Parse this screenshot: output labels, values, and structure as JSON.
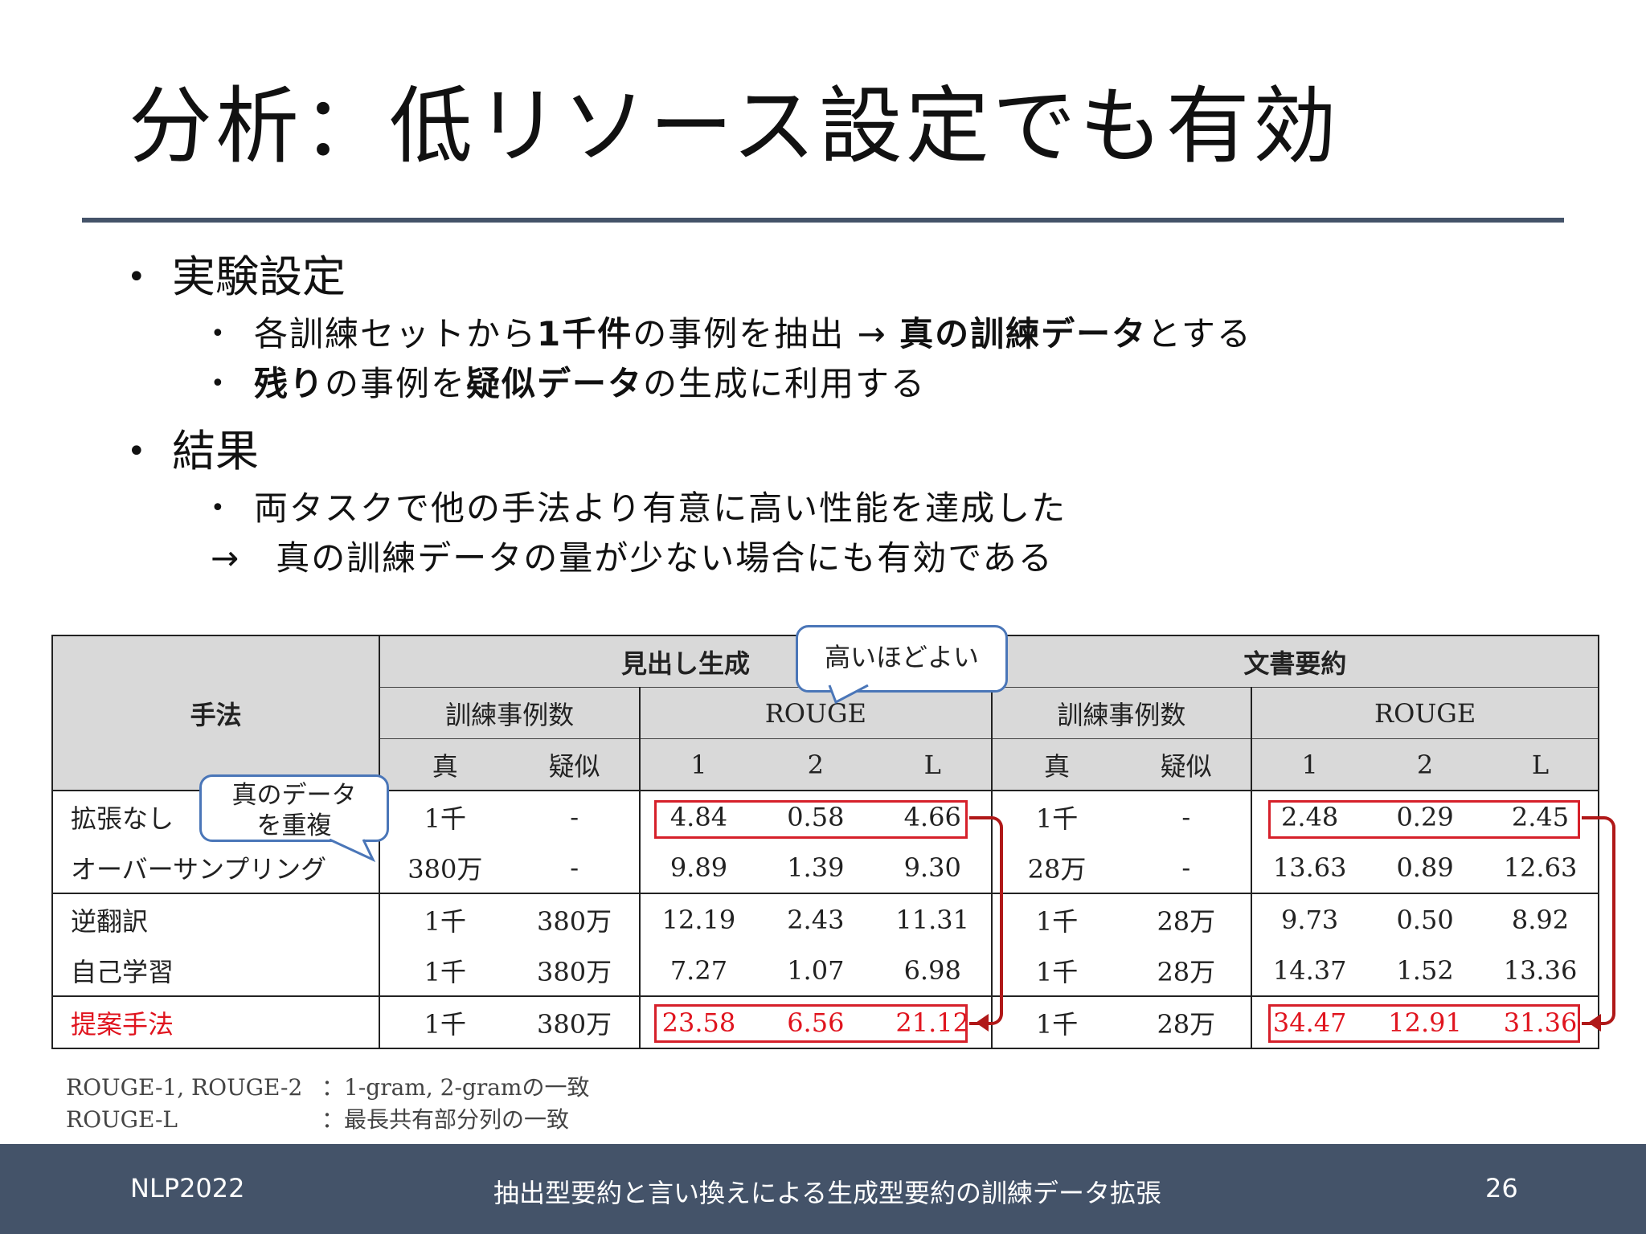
{
  "title": "分析：低リソース設定でも有効",
  "bullets": {
    "setting": {
      "heading": "実験設定",
      "items": [
        {
          "p1": "各訓練セットから",
          "b1": "1千件",
          "p2": "の事例を抽出 → ",
          "b2": "真の訓練データ",
          "p3": "とする"
        },
        {
          "b1": "残り",
          "p1": "の事例を",
          "b2": "疑似データ",
          "p2": "の生成に利用する"
        }
      ]
    },
    "result": {
      "heading": "結果",
      "item": "両タスクで他の手法より有意に高い性能を達成した",
      "conclusion": "→　真の訓練データの量が少ない場合にも有効である"
    }
  },
  "table": {
    "method_header": "手法",
    "task1": "見出し生成",
    "task2": "文書要約",
    "count_header": "訓練事例数",
    "rouge_header": "ROUGE",
    "true_label": "真",
    "pseudo_label": "疑似",
    "rouge_cols": [
      "1",
      "2",
      "L"
    ],
    "rows": [
      {
        "method": "拡張なし",
        "h_true": "1千",
        "h_pseudo": "-",
        "h_r1": "4.84",
        "h_r2": "0.58",
        "h_rl": "4.66",
        "s_true": "1千",
        "s_pseudo": "-",
        "s_r1": "2.48",
        "s_r2": "0.29",
        "s_rl": "2.45"
      },
      {
        "method": "オーバーサンプリング",
        "h_true": "380万",
        "h_pseudo": "-",
        "h_r1": "9.89",
        "h_r2": "1.39",
        "h_rl": "9.30",
        "s_true": "28万",
        "s_pseudo": "-",
        "s_r1": "13.63",
        "s_r2": "0.89",
        "s_rl": "12.63"
      },
      {
        "method": "逆翻訳",
        "h_true": "1千",
        "h_pseudo": "380万",
        "h_r1": "12.19",
        "h_r2": "2.43",
        "h_rl": "11.31",
        "s_true": "1千",
        "s_pseudo": "28万",
        "s_r1": "9.73",
        "s_r2": "0.50",
        "s_rl": "8.92"
      },
      {
        "method": "自己学習",
        "h_true": "1千",
        "h_pseudo": "380万",
        "h_r1": "7.27",
        "h_r2": "1.07",
        "h_rl": "6.98",
        "s_true": "1千",
        "s_pseudo": "28万",
        "s_r1": "14.37",
        "s_r2": "1.52",
        "s_rl": "13.36"
      },
      {
        "method": "提案手法",
        "h_true": "1千",
        "h_pseudo": "380万",
        "h_r1": "23.58",
        "h_r2": "6.56",
        "h_rl": "21.12",
        "s_true": "1千",
        "s_pseudo": "28万",
        "s_r1": "34.47",
        "s_r2": "12.91",
        "s_rl": "31.36"
      }
    ]
  },
  "callouts": {
    "higher_better": "高いほどよい",
    "duplicate_line1": "真のデータ",
    "duplicate_line2": "を重複"
  },
  "notes": [
    {
      "key": "ROUGE-1, ROUGE-2",
      "value": "：1-gram, 2-gramの一致"
    },
    {
      "key": "ROUGE-L",
      "value": "：最長共有部分列の一致"
    }
  ],
  "footer": {
    "left": "NLP2022",
    "center": "抽出型要約と言い換えによる生成型要約の訓練データ拡張",
    "page": "26"
  },
  "colors": {
    "accent_bar": "#445369",
    "highlight_red": "#e0141e",
    "callout_border": "#4a76b8",
    "header_gray": "#d9d9d9"
  }
}
